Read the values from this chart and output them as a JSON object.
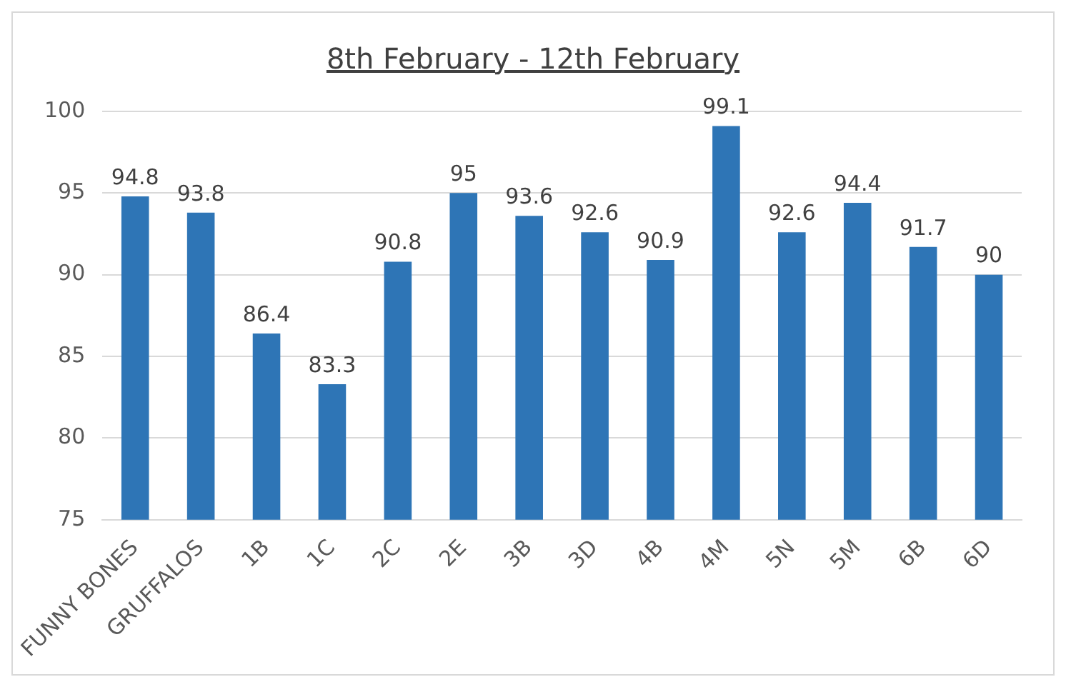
{
  "chart_data": {
    "type": "bar",
    "title": "8th February  - 12th February",
    "categories": [
      "FUNNY BONES",
      "GRUFFALOS",
      "1B",
      "1C",
      "2C",
      "2E",
      "3B",
      "3D",
      "4B",
      "4M",
      "5N",
      "5M",
      "6B",
      "6D"
    ],
    "values": [
      94.8,
      93.8,
      86.4,
      83.3,
      90.8,
      95,
      93.6,
      92.6,
      90.9,
      99.1,
      92.6,
      94.4,
      91.7,
      90
    ],
    "color": "#2e75b6",
    "ylim": [
      75,
      100
    ],
    "yticks": [
      75,
      80,
      85,
      90,
      95,
      100
    ],
    "grid": "y",
    "data_labels": true,
    "legend": false
  }
}
